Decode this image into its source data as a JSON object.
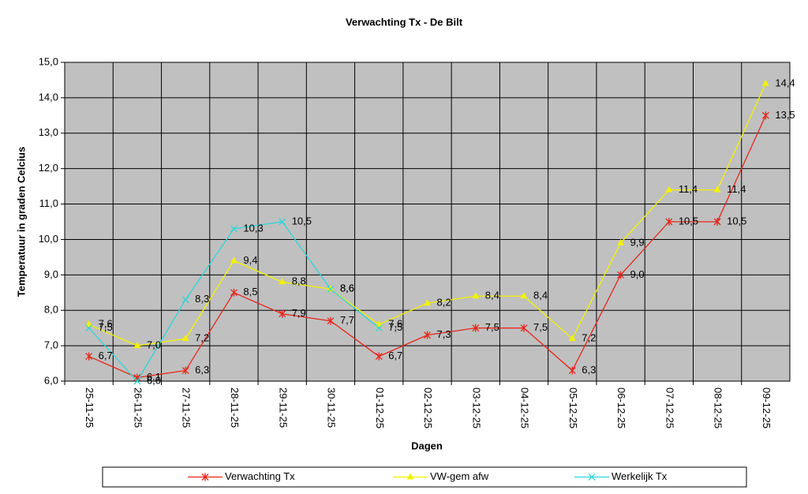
{
  "chart_data": {
    "type": "line",
    "title": "Verwachting Tx - De Bilt",
    "x_label": "Dagen",
    "y_label": "Temperatuur in graden Celcius",
    "categories": [
      "25-11-25",
      "26-11-25",
      "27-11-25",
      "28-11-25",
      "29-11-25",
      "30-11-25",
      "01-12-25",
      "02-12-25",
      "03-12-25",
      "04-12-25",
      "05-12-25",
      "06-12-25",
      "07-12-25",
      "08-12-25",
      "09-12-25"
    ],
    "series": [
      {
        "name": "Verwachting Tx",
        "color": "#e8251b",
        "marker": "star",
        "values": [
          6.7,
          6.1,
          6.3,
          8.5,
          7.9,
          7.7,
          6.7,
          7.3,
          7.5,
          7.5,
          6.3,
          9.0,
          10.5,
          10.5,
          13.5
        ],
        "value_labels": [
          "6,7",
          "6,1",
          "6,3",
          "8,5",
          "7,9",
          "7,7",
          "6,7",
          "7,3",
          "7,5",
          "7,5",
          "6,3",
          "9,0",
          "10,5",
          "10,5",
          "13,5"
        ]
      },
      {
        "name": "VW-gem afw",
        "color": "#f2f200",
        "marker": "triangle",
        "values": [
          7.6,
          7.0,
          7.2,
          9.4,
          8.8,
          8.6,
          7.6,
          8.2,
          8.4,
          8.4,
          7.2,
          9.9,
          11.4,
          11.4,
          14.4
        ],
        "value_labels": [
          "7,6",
          "7,0",
          "7,2",
          "9,4",
          "8,8",
          "8,6",
          "7,6",
          "8,2",
          "8,4",
          "8,4",
          "7,2",
          "9,9",
          "11,4",
          "11,4",
          "14,4"
        ]
      },
      {
        "name": "Werkelijk Tx",
        "color": "#2fd6d6",
        "marker": "x",
        "values": [
          7.5,
          6.0,
          8.3,
          10.3,
          10.5,
          8.6,
          7.5,
          null,
          null,
          null,
          null,
          null,
          null,
          null,
          null
        ],
        "value_labels": [
          "7,5",
          "6,0",
          "8,3",
          "10,3",
          "10,5",
          "8,6",
          "7,5",
          null,
          null,
          null,
          null,
          null,
          null,
          null,
          null
        ]
      }
    ],
    "ylim": [
      6,
      15
    ],
    "yticks": [
      {
        "value": 6,
        "label": "6,0"
      },
      {
        "value": 7,
        "label": "7,0"
      },
      {
        "value": 8,
        "label": "8,0"
      },
      {
        "value": 9,
        "label": "9,0"
      },
      {
        "value": 10,
        "label": "10,0"
      },
      {
        "value": 11,
        "label": "11,0"
      },
      {
        "value": 12,
        "label": "12,0"
      },
      {
        "value": 13,
        "label": "13,0"
      },
      {
        "value": 14,
        "label": "14,0"
      },
      {
        "value": 15,
        "label": "15,0"
      }
    ],
    "grid": true,
    "background": "#c0c0c0",
    "legend": "bottom"
  }
}
